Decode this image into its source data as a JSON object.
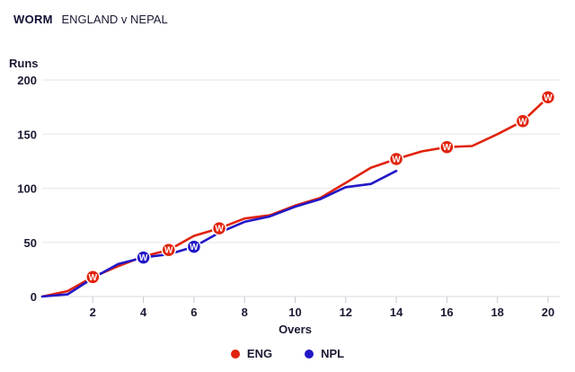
{
  "header": {
    "tag": "WORM",
    "match": "ENGLAND v NEPAL"
  },
  "colors": {
    "ENG": "#e0230b",
    "NPL": "#2217c6",
    "grid": "#e6e6ee",
    "text": "#1a1a33"
  },
  "chart_data": {
    "type": "line",
    "title": "",
    "xlabel": "Overs",
    "ylabel": "Runs",
    "xlim": [
      0,
      20
    ],
    "ylim": [
      0,
      200
    ],
    "x_ticks": [
      2,
      4,
      6,
      8,
      10,
      12,
      14,
      16,
      18,
      20
    ],
    "y_ticks": [
      0,
      50,
      100,
      150,
      200
    ],
    "grid": true,
    "legend": "bottom-center",
    "wicket_marker_label": "W",
    "series": [
      {
        "name": "ENG",
        "color": "#e0230b",
        "x": [
          0,
          1,
          2,
          3,
          4,
          5,
          6,
          7,
          8,
          9,
          10,
          11,
          12,
          13,
          14,
          15,
          16,
          17,
          18,
          19,
          20
        ],
        "y": [
          0,
          5,
          18,
          28,
          37,
          43,
          56,
          63,
          72,
          75,
          84,
          91,
          105,
          119,
          127,
          134,
          138,
          139,
          150,
          162,
          184
        ],
        "wickets": [
          [
            2,
            18
          ],
          [
            5,
            43
          ],
          [
            7,
            63
          ],
          [
            14,
            127
          ],
          [
            16,
            138
          ],
          [
            19,
            162
          ],
          [
            20,
            184
          ]
        ]
      },
      {
        "name": "NPL",
        "color": "#2217c6",
        "x": [
          0,
          1,
          2,
          3,
          4,
          5,
          6,
          7,
          8,
          9,
          10,
          11,
          12,
          13,
          14
        ],
        "y": [
          0,
          2,
          17,
          30,
          36,
          39,
          46,
          59,
          69,
          74,
          83,
          90,
          101,
          104,
          116
        ],
        "wickets": [
          [
            4,
            36
          ],
          [
            6,
            46
          ]
        ]
      }
    ]
  },
  "legend": {
    "items": [
      {
        "label": "ENG"
      },
      {
        "label": "NPL"
      }
    ]
  }
}
